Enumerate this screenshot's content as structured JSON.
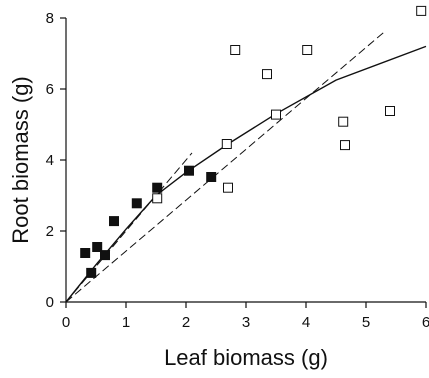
{
  "chart_data": {
    "type": "scatter",
    "title": "",
    "xlabel": "Leaf biomass (g)",
    "ylabel": "Root biomass (g)",
    "xlim": [
      0,
      6
    ],
    "ylim": [
      0,
      8
    ],
    "xticks": [
      "0",
      "1",
      "2",
      "3",
      "4",
      "5",
      "6"
    ],
    "yticks": [
      "0",
      "2",
      "4",
      "6",
      "8"
    ],
    "grid": false,
    "legend": "none",
    "series": [
      {
        "marker": "filled-square",
        "color": "#111111",
        "points": [
          [
            0.32,
            1.38
          ],
          [
            0.42,
            0.82
          ],
          [
            0.52,
            1.55
          ],
          [
            0.65,
            1.32
          ],
          [
            0.8,
            2.28
          ],
          [
            1.18,
            2.78
          ],
          [
            1.52,
            3.22
          ],
          [
            2.05,
            3.7
          ],
          [
            2.42,
            3.52
          ]
        ]
      },
      {
        "marker": "open-square",
        "color": "#111111",
        "points": [
          [
            1.52,
            2.92
          ],
          [
            2.68,
            4.45
          ],
          [
            2.7,
            3.22
          ],
          [
            2.82,
            7.1
          ],
          [
            3.35,
            6.42
          ],
          [
            3.5,
            5.28
          ],
          [
            4.02,
            7.1
          ],
          [
            4.62,
            5.08
          ],
          [
            4.65,
            4.42
          ],
          [
            5.4,
            5.38
          ],
          [
            5.92,
            8.2
          ]
        ]
      }
    ],
    "lines": [
      {
        "style": "solid",
        "color": "#111111",
        "points": [
          [
            0.0,
            0.0
          ],
          [
            0.5,
            1.05
          ],
          [
            1.0,
            2.05
          ],
          [
            1.5,
            3.0
          ],
          [
            2.0,
            3.65
          ],
          [
            2.7,
            4.45
          ],
          [
            3.5,
            5.3
          ],
          [
            4.5,
            6.25
          ],
          [
            6.0,
            7.2
          ]
        ]
      },
      {
        "style": "dashed",
        "color": "#111111",
        "points": [
          [
            0.0,
            0.0
          ],
          [
            2.1,
            4.2
          ]
        ]
      },
      {
        "style": "dashed",
        "color": "#111111",
        "points": [
          [
            0.0,
            0.0
          ],
          [
            5.3,
            7.6
          ]
        ]
      }
    ]
  }
}
